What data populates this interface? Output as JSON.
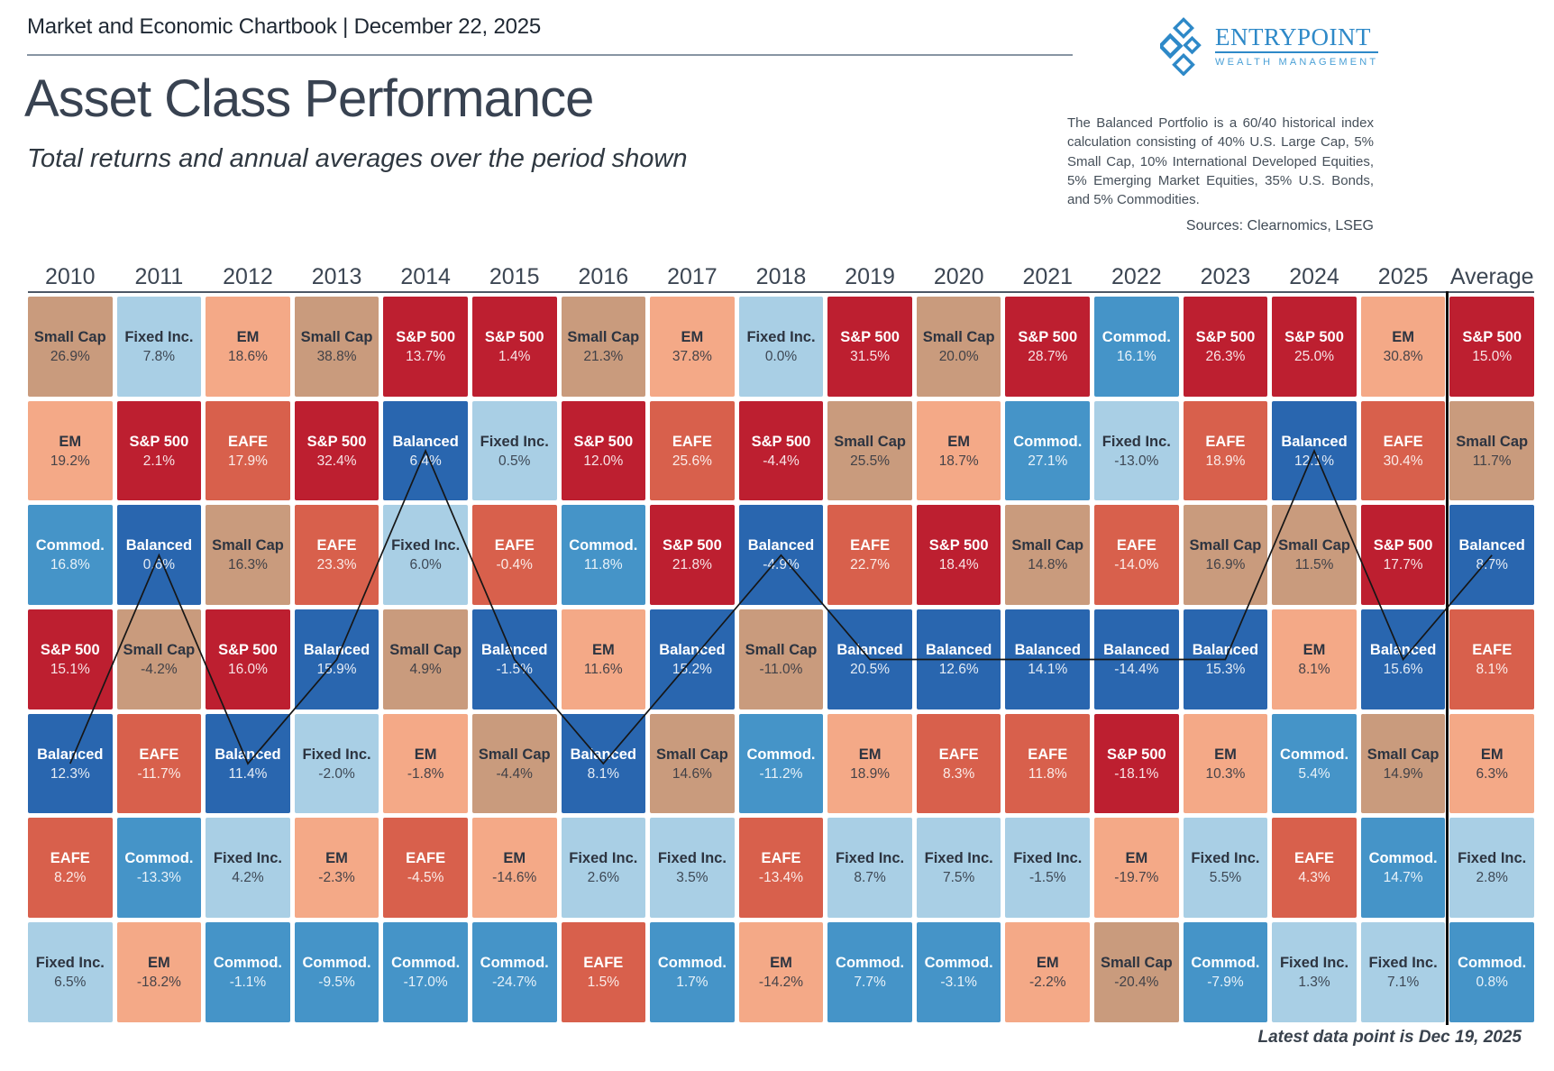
{
  "header": {
    "chartbook_label": "Market and Economic Chartbook | December 22, 2025",
    "logo": {
      "line1": "ENTRYPOINT",
      "line2": "WEALTH MANAGEMENT",
      "icon": "diamond-cluster-icon",
      "color": "#2e89c8"
    }
  },
  "chart_data": {
    "type": "table",
    "subtype": "asset-return-quilt",
    "title": "Asset Class Performance",
    "subtitle": "Total returns and annual averages over the period shown",
    "note": "The Balanced Portfolio is a 60/40 historical index calculation consisting of 40% U.S. Large Cap, 5% Small Cap, 10% International Developed Equities, 5% Emerging Market Equities, 35% U.S. Bonds, and 5% Commodities.",
    "sources": "Sources: Clearnomics, LSEG",
    "footnote": "Latest data point is Dec 19, 2025",
    "columns": [
      "2010",
      "2011",
      "2012",
      "2013",
      "2014",
      "2015",
      "2016",
      "2017",
      "2018",
      "2019",
      "2020",
      "2021",
      "2022",
      "2023",
      "2024",
      "2025",
      "Average"
    ],
    "asset_colors": {
      "S&P 500": "#bd1f30",
      "Small Cap": "#c99b7d",
      "EM": "#f4a987",
      "EAFE": "#d8604c",
      "Balanced": "#2966af",
      "Fixed Inc.": "#a9cfe5",
      "Commod.": "#4594c8"
    },
    "dark_text_assets": [
      "Small Cap",
      "EM",
      "Fixed Inc."
    ],
    "highlight": {
      "series": "Balanced",
      "line_color": "#161616"
    },
    "separator_before_column": "Average",
    "cells": [
      [
        {
          "asset": "Small Cap",
          "value": 26.9
        },
        {
          "asset": "EM",
          "value": 19.2
        },
        {
          "asset": "Commod.",
          "value": 16.8
        },
        {
          "asset": "S&P 500",
          "value": 15.1
        },
        {
          "asset": "Balanced",
          "value": 12.3
        },
        {
          "asset": "EAFE",
          "value": 8.2
        },
        {
          "asset": "Fixed Inc.",
          "value": 6.5
        }
      ],
      [
        {
          "asset": "Fixed Inc.",
          "value": 7.8
        },
        {
          "asset": "S&P 500",
          "value": 2.1
        },
        {
          "asset": "Balanced",
          "value": 0.6
        },
        {
          "asset": "Small Cap",
          "value": -4.2
        },
        {
          "asset": "EAFE",
          "value": -11.7
        },
        {
          "asset": "Commod.",
          "value": -13.3
        },
        {
          "asset": "EM",
          "value": -18.2
        }
      ],
      [
        {
          "asset": "EM",
          "value": 18.6
        },
        {
          "asset": "EAFE",
          "value": 17.9
        },
        {
          "asset": "Small Cap",
          "value": 16.3
        },
        {
          "asset": "S&P 500",
          "value": 16.0
        },
        {
          "asset": "Balanced",
          "value": 11.4
        },
        {
          "asset": "Fixed Inc.",
          "value": 4.2
        },
        {
          "asset": "Commod.",
          "value": -1.1
        }
      ],
      [
        {
          "asset": "Small Cap",
          "value": 38.8
        },
        {
          "asset": "S&P 500",
          "value": 32.4
        },
        {
          "asset": "EAFE",
          "value": 23.3
        },
        {
          "asset": "Balanced",
          "value": 15.9
        },
        {
          "asset": "Fixed Inc.",
          "value": -2.0
        },
        {
          "asset": "EM",
          "value": -2.3
        },
        {
          "asset": "Commod.",
          "value": -9.5
        }
      ],
      [
        {
          "asset": "S&P 500",
          "value": 13.7
        },
        {
          "asset": "Balanced",
          "value": 6.4
        },
        {
          "asset": "Fixed Inc.",
          "value": 6.0
        },
        {
          "asset": "Small Cap",
          "value": 4.9
        },
        {
          "asset": "EM",
          "value": -1.8
        },
        {
          "asset": "EAFE",
          "value": -4.5
        },
        {
          "asset": "Commod.",
          "value": -17.0
        }
      ],
      [
        {
          "asset": "S&P 500",
          "value": 1.4
        },
        {
          "asset": "Fixed Inc.",
          "value": 0.5
        },
        {
          "asset": "EAFE",
          "value": -0.4
        },
        {
          "asset": "Balanced",
          "value": -1.5
        },
        {
          "asset": "Small Cap",
          "value": -4.4
        },
        {
          "asset": "EM",
          "value": -14.6
        },
        {
          "asset": "Commod.",
          "value": -24.7
        }
      ],
      [
        {
          "asset": "Small Cap",
          "value": 21.3
        },
        {
          "asset": "S&P 500",
          "value": 12.0
        },
        {
          "asset": "Commod.",
          "value": 11.8
        },
        {
          "asset": "EM",
          "value": 11.6
        },
        {
          "asset": "Balanced",
          "value": 8.1
        },
        {
          "asset": "Fixed Inc.",
          "value": 2.6
        },
        {
          "asset": "EAFE",
          "value": 1.5
        }
      ],
      [
        {
          "asset": "EM",
          "value": 37.8
        },
        {
          "asset": "EAFE",
          "value": 25.6
        },
        {
          "asset": "S&P 500",
          "value": 21.8
        },
        {
          "asset": "Balanced",
          "value": 15.2
        },
        {
          "asset": "Small Cap",
          "value": 14.6
        },
        {
          "asset": "Fixed Inc.",
          "value": 3.5
        },
        {
          "asset": "Commod.",
          "value": 1.7
        }
      ],
      [
        {
          "asset": "Fixed Inc.",
          "value": 0.0
        },
        {
          "asset": "S&P 500",
          "value": -4.4
        },
        {
          "asset": "Balanced",
          "value": -4.9
        },
        {
          "asset": "Small Cap",
          "value": -11.0
        },
        {
          "asset": "Commod.",
          "value": -11.2
        },
        {
          "asset": "EAFE",
          "value": -13.4
        },
        {
          "asset": "EM",
          "value": -14.2
        }
      ],
      [
        {
          "asset": "S&P 500",
          "value": 31.5
        },
        {
          "asset": "Small Cap",
          "value": 25.5
        },
        {
          "asset": "EAFE",
          "value": 22.7
        },
        {
          "asset": "Balanced",
          "value": 20.5
        },
        {
          "asset": "EM",
          "value": 18.9
        },
        {
          "asset": "Fixed Inc.",
          "value": 8.7
        },
        {
          "asset": "Commod.",
          "value": 7.7
        }
      ],
      [
        {
          "asset": "Small Cap",
          "value": 20.0
        },
        {
          "asset": "EM",
          "value": 18.7
        },
        {
          "asset": "S&P 500",
          "value": 18.4
        },
        {
          "asset": "Balanced",
          "value": 12.6
        },
        {
          "asset": "EAFE",
          "value": 8.3
        },
        {
          "asset": "Fixed Inc.",
          "value": 7.5
        },
        {
          "asset": "Commod.",
          "value": -3.1
        }
      ],
      [
        {
          "asset": "S&P 500",
          "value": 28.7
        },
        {
          "asset": "Commod.",
          "value": 27.1
        },
        {
          "asset": "Small Cap",
          "value": 14.8
        },
        {
          "asset": "Balanced",
          "value": 14.1
        },
        {
          "asset": "EAFE",
          "value": 11.8
        },
        {
          "asset": "Fixed Inc.",
          "value": -1.5
        },
        {
          "asset": "EM",
          "value": -2.2
        }
      ],
      [
        {
          "asset": "Commod.",
          "value": 16.1
        },
        {
          "asset": "Fixed Inc.",
          "value": -13.0
        },
        {
          "asset": "EAFE",
          "value": -14.0
        },
        {
          "asset": "Balanced",
          "value": -14.4
        },
        {
          "asset": "S&P 500",
          "value": -18.1
        },
        {
          "asset": "EM",
          "value": -19.7
        },
        {
          "asset": "Small Cap",
          "value": -20.4
        }
      ],
      [
        {
          "asset": "S&P 500",
          "value": 26.3
        },
        {
          "asset": "EAFE",
          "value": 18.9
        },
        {
          "asset": "Small Cap",
          "value": 16.9
        },
        {
          "asset": "Balanced",
          "value": 15.3
        },
        {
          "asset": "EM",
          "value": 10.3
        },
        {
          "asset": "Fixed Inc.",
          "value": 5.5
        },
        {
          "asset": "Commod.",
          "value": -7.9
        }
      ],
      [
        {
          "asset": "S&P 500",
          "value": 25.0
        },
        {
          "asset": "Balanced",
          "value": 12.1
        },
        {
          "asset": "Small Cap",
          "value": 11.5
        },
        {
          "asset": "EM",
          "value": 8.1
        },
        {
          "asset": "Commod.",
          "value": 5.4
        },
        {
          "asset": "EAFE",
          "value": 4.3
        },
        {
          "asset": "Fixed Inc.",
          "value": 1.3
        }
      ],
      [
        {
          "asset": "EM",
          "value": 30.8
        },
        {
          "asset": "EAFE",
          "value": 30.4
        },
        {
          "asset": "S&P 500",
          "value": 17.7
        },
        {
          "asset": "Balanced",
          "value": 15.6
        },
        {
          "asset": "Small Cap",
          "value": 14.9
        },
        {
          "asset": "Commod.",
          "value": 14.7
        },
        {
          "asset": "Fixed Inc.",
          "value": 7.1
        }
      ],
      [
        {
          "asset": "S&P 500",
          "value": 15.0
        },
        {
          "asset": "Small Cap",
          "value": 11.7
        },
        {
          "asset": "Balanced",
          "value": 8.7
        },
        {
          "asset": "EAFE",
          "value": 8.1
        },
        {
          "asset": "EM",
          "value": 6.3
        },
        {
          "asset": "Fixed Inc.",
          "value": 2.8
        },
        {
          "asset": "Commod.",
          "value": 0.8
        }
      ]
    ]
  },
  "footer": {
    "latest": "Latest data point is Dec 19, 2025"
  }
}
